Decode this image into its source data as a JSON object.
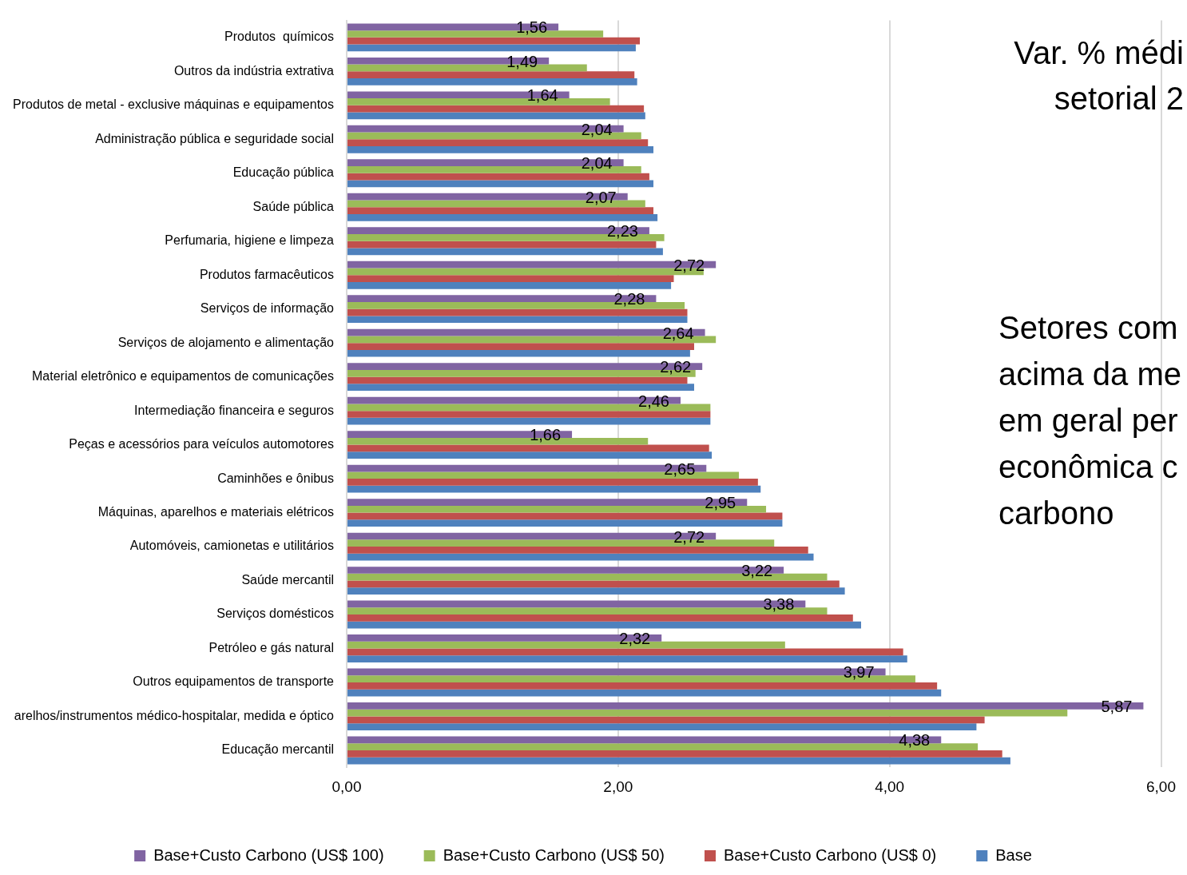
{
  "chart_data": {
    "type": "bar",
    "orientation": "horizontal",
    "categories": [
      "Produtos  químicos",
      "Outros da indústria extrativa",
      "Produtos de metal - exclusive máquinas e equipamentos",
      "Administração pública e seguridade social",
      "Educação pública",
      "Saúde pública",
      "Perfumaria, higiene e limpeza",
      "Produtos farmacêuticos",
      "Serviços de informação",
      "Serviços de alojamento e alimentação",
      "Material eletrônico e equipamentos de comunicações",
      "Intermediação financeira e seguros",
      "Peças e acessórios para veículos automotores",
      "Caminhões e ônibus",
      "Máquinas, aparelhos e materiais elétricos",
      "Automóveis, camionetas e utilitários",
      "Saúde mercantil",
      "Serviços domésticos",
      "Petróleo e gás natural",
      "Outros equipamentos de transporte",
      "arelhos/instrumentos médico-hospitalar, medida e óptico",
      "Educação mercantil"
    ],
    "series": [
      {
        "name": "Base+Custo Carbono (US$ 100)",
        "color": "#8064a2",
        "values": [
          1.56,
          1.49,
          1.64,
          2.04,
          2.04,
          2.07,
          2.23,
          2.72,
          2.28,
          2.64,
          2.62,
          2.46,
          1.66,
          2.65,
          2.95,
          2.72,
          3.22,
          3.38,
          2.32,
          3.97,
          5.87,
          4.38
        ],
        "value_labels": [
          "1,56",
          "1,49",
          "1,64",
          "2,04",
          "2,04",
          "2,07",
          "2,23",
          "2,72",
          "2,28",
          "2,64",
          "2,62",
          "2,46",
          "1,66",
          "2,65",
          "2,95",
          "2,72",
          "3,22",
          "3,38",
          "2,32",
          "3,97",
          "5,87",
          "4,38"
        ]
      },
      {
        "name": "Base+Custo Carbono (US$ 50)",
        "color": "#9bbb59",
        "values": [
          1.89,
          1.77,
          1.94,
          2.17,
          2.17,
          2.2,
          2.34,
          2.63,
          2.49,
          2.72,
          2.57,
          2.68,
          2.22,
          2.89,
          3.09,
          3.15,
          3.54,
          3.54,
          3.23,
          4.19,
          5.31,
          4.65
        ]
      },
      {
        "name": "Base+Custo Carbono (US$ 0)",
        "color": "#c0504d",
        "values": [
          2.16,
          2.12,
          2.19,
          2.22,
          2.23,
          2.26,
          2.28,
          2.41,
          2.51,
          2.56,
          2.51,
          2.68,
          2.67,
          3.03,
          3.21,
          3.4,
          3.63,
          3.73,
          4.1,
          4.35,
          4.7,
          4.83
        ]
      },
      {
        "name": "Base",
        "color": "#4f81bd",
        "values": [
          2.13,
          2.14,
          2.2,
          2.26,
          2.26,
          2.29,
          2.33,
          2.39,
          2.51,
          2.53,
          2.56,
          2.68,
          2.69,
          3.05,
          3.21,
          3.44,
          3.67,
          3.79,
          4.13,
          4.38,
          4.64,
          4.89
        ]
      }
    ],
    "xlim": [
      0,
      6
    ],
    "xticks": [
      {
        "value": 0,
        "label": "0,00"
      },
      {
        "value": 2,
        "label": "2,00"
      },
      {
        "value": 4,
        "label": "4,00"
      },
      {
        "value": 6,
        "label": "6,00"
      }
    ],
    "grid": "x",
    "legend": "bottom",
    "annotations": [
      "Var. % médi",
      "setorial 2",
      "Setores com",
      "acima da me",
      "em geral per",
      "econômica c",
      "carbono"
    ]
  }
}
